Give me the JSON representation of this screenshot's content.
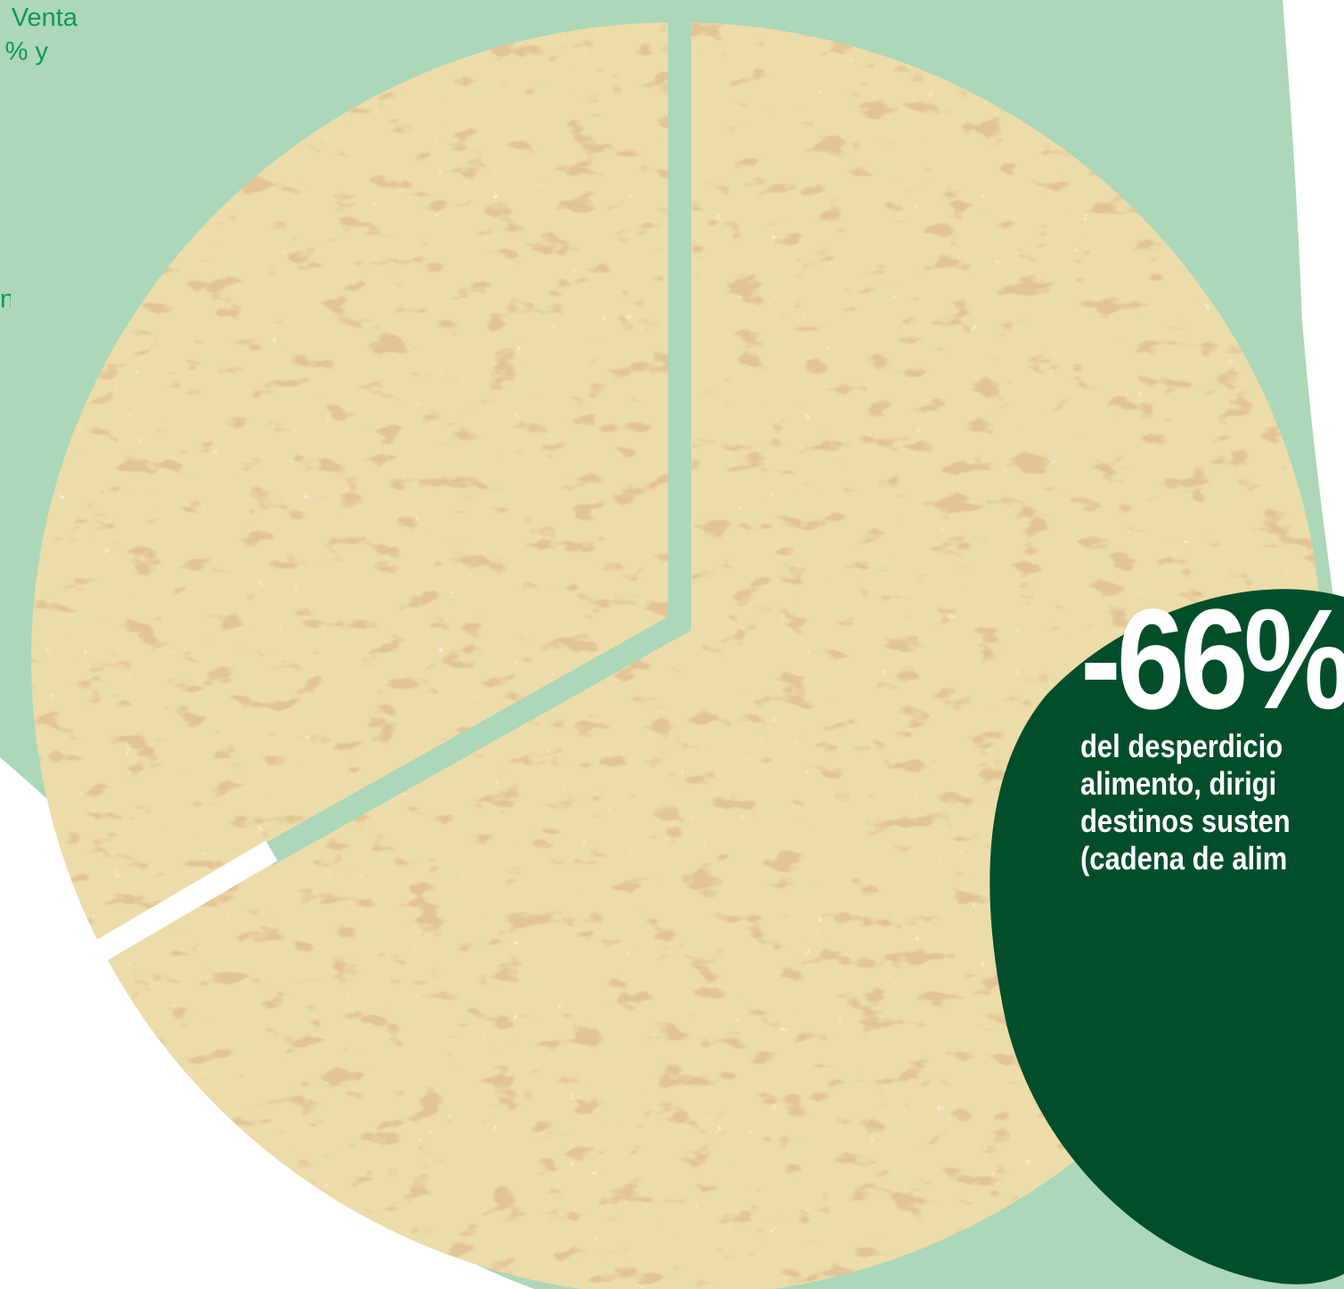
{
  "colors": {
    "mint": "#acd7b8",
    "dark_green": "#024e2b",
    "text_green": "#0f9a55",
    "tortilla": "#ecdcaa",
    "toast": "#c58f4d",
    "divider_white": "#ffffff"
  },
  "left_text_fragments": [
    "Venta",
    "% y",
    "n"
  ],
  "stat": {
    "value": "-66%",
    "description_lines": [
      "del desperdicio",
      "alimento, dirigi",
      "destinos susten",
      "(cadena de alim"
    ]
  }
}
